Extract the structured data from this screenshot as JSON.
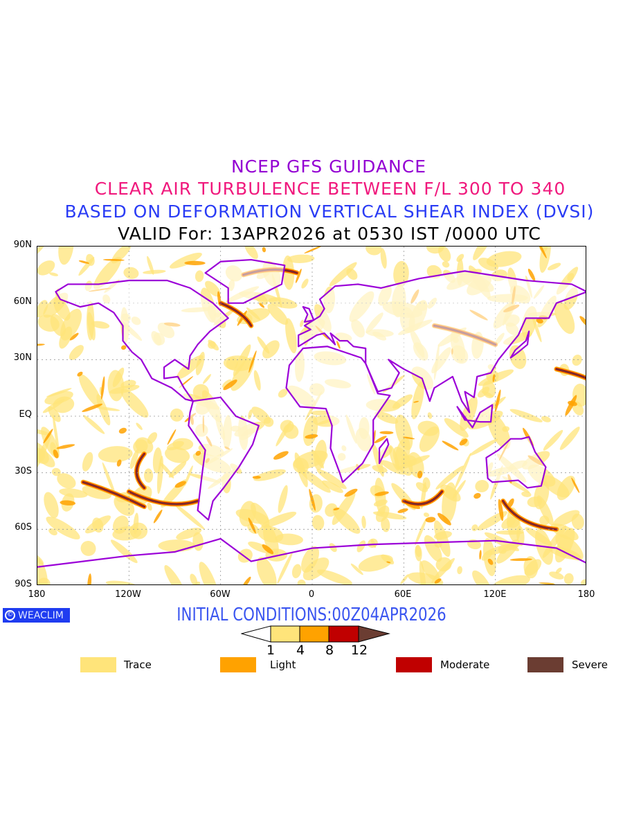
{
  "titles": {
    "line1": "NCEP GFS GUIDANCE",
    "line2": "CLEAR AIR TURBULENCE BETWEEN F/L 300 TO 340",
    "line3": "BASED ON DEFORMATION VERTICAL SHEAR INDEX (DVSI)",
    "line4": "VALID For: 13APR2026 at 0530 IST /0000 UTC"
  },
  "axes": {
    "lat_labels": [
      "90N",
      "60N",
      "30N",
      "EQ",
      "30S",
      "60S",
      "90S"
    ],
    "lon_labels": [
      "180",
      "120W",
      "60W",
      "0",
      "60E",
      "120E",
      "180"
    ]
  },
  "logo": {
    "symbol": "©",
    "text": "WEACLIM"
  },
  "initial_conditions": "INITIAL CONDITIONS:00Z04APR2026",
  "colorbar": {
    "ticks": [
      "1",
      "4",
      "8",
      "12"
    ],
    "colors": [
      "#ffffff",
      "#ffe47a",
      "#ffa200",
      "#c00000",
      "#6b3d32"
    ]
  },
  "legend": [
    {
      "label": "Trace",
      "color": "#ffe47a"
    },
    {
      "label": "Light",
      "color": "#ffa200"
    },
    {
      "label": "Moderate",
      "color": "#c00000"
    },
    {
      "label": "Severe",
      "color": "#6b3d32"
    }
  ],
  "colors": {
    "coastline": "#9b00d8"
  }
}
